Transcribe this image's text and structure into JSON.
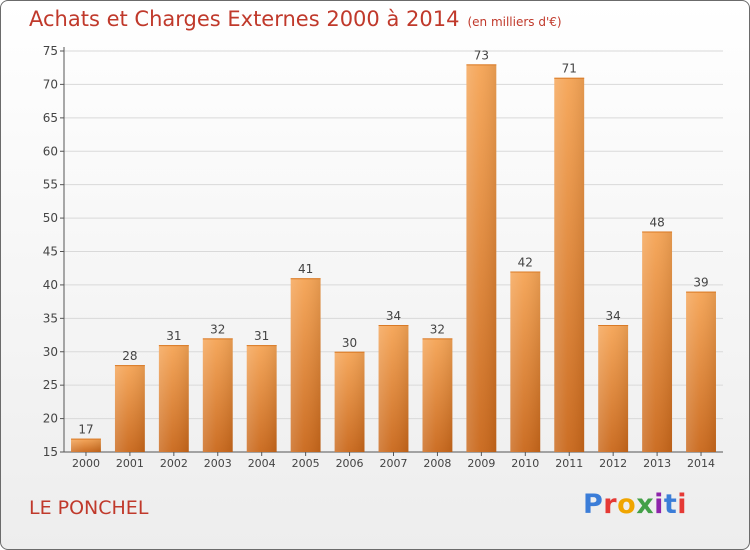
{
  "header": {
    "title": "Achats et Charges Externes 2000 à 2014",
    "unit": "(en milliers d'€)"
  },
  "footer": {
    "commune": "LE PONCHEL",
    "logo_text": "Proxiti"
  },
  "colors": {
    "title": "#c0392b",
    "bar_top": "#f5a455",
    "bar_bottom": "#c9671a",
    "grid": "#d9d9d9",
    "logo": [
      "#3b7dd8",
      "#e53935",
      "#f0a500",
      "#43a047",
      "#8e24aa",
      "#3b7dd8",
      "#e53935"
    ]
  },
  "chart_data": {
    "type": "bar",
    "title": "Achats et Charges Externes 2000 à 2014",
    "xlabel": "",
    "ylabel": "",
    "ylim": [
      15,
      75
    ],
    "yticks": [
      15,
      20,
      25,
      30,
      35,
      40,
      45,
      50,
      55,
      60,
      65,
      70,
      75
    ],
    "grid": true,
    "categories": [
      "2000",
      "2001",
      "2002",
      "2003",
      "2004",
      "2005",
      "2006",
      "2007",
      "2008",
      "2009",
      "2010",
      "2011",
      "2012",
      "2013",
      "2014"
    ],
    "values": [
      17,
      28,
      31,
      32,
      31,
      41,
      30,
      34,
      32,
      73,
      42,
      71,
      34,
      48,
      39
    ]
  }
}
